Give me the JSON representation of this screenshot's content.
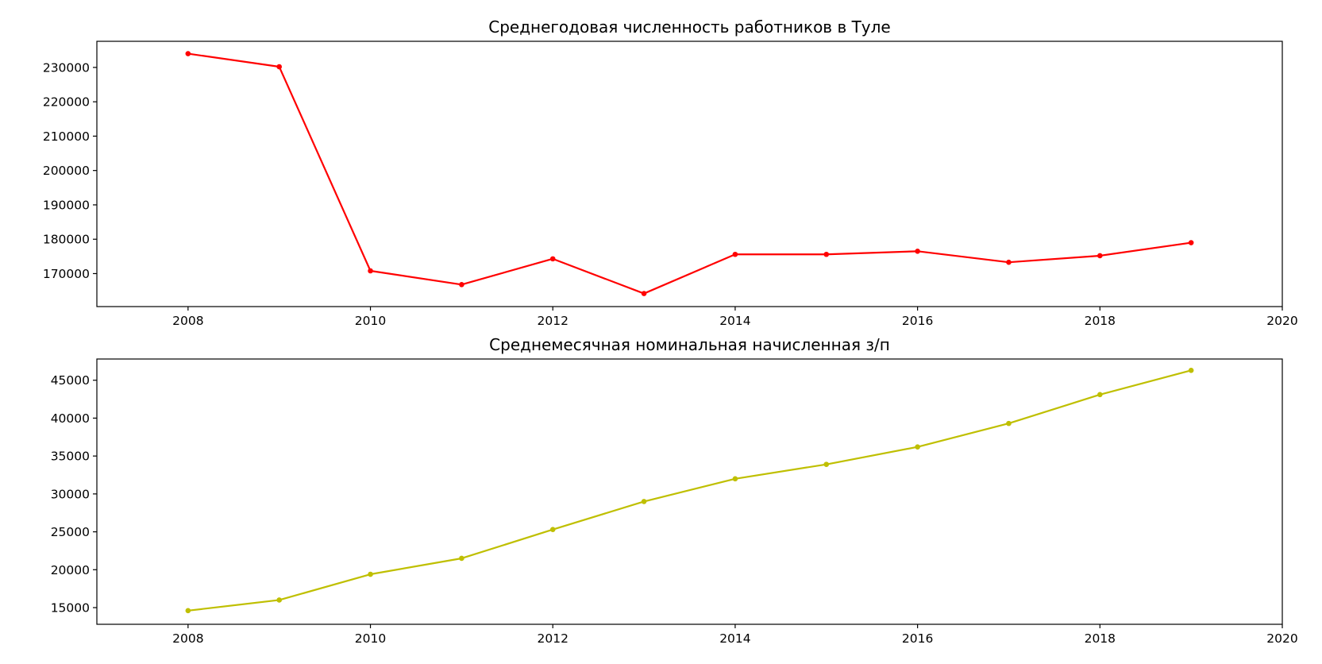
{
  "chart_data": [
    {
      "type": "line",
      "title": "Среднегодовая численность работников в Туле",
      "xlabel": "",
      "ylabel": "",
      "x": [
        2008,
        2009,
        2010,
        2011,
        2012,
        2013,
        2014,
        2015,
        2016,
        2017,
        2018,
        2019
      ],
      "series": [
        {
          "values": [
            234000,
            230200,
            170800,
            166800,
            174300,
            164200,
            175600,
            175600,
            176500,
            173300,
            175200,
            179000
          ],
          "color": "#ff0000",
          "marker": "dot"
        }
      ],
      "xlim": [
        2007,
        2020
      ],
      "ylim": [
        160400,
        237600
      ],
      "xticks": [
        2008,
        2010,
        2012,
        2014,
        2016,
        2018,
        2020
      ],
      "yticks": [
        170000,
        180000,
        190000,
        200000,
        210000,
        220000,
        230000
      ],
      "grid": false,
      "legend": "none"
    },
    {
      "type": "line",
      "title": "Среднемесячная номинальная начисленная з/п",
      "xlabel": "",
      "ylabel": "",
      "x": [
        2008,
        2009,
        2010,
        2011,
        2012,
        2013,
        2014,
        2015,
        2016,
        2017,
        2018,
        2019
      ],
      "series": [
        {
          "values": [
            14600,
            16000,
            19400,
            21500,
            25300,
            29000,
            32000,
            33900,
            36200,
            39300,
            43100,
            46300
          ],
          "color": "#bfbf00",
          "marker": "dot"
        }
      ],
      "xlim": [
        2007,
        2020
      ],
      "ylim": [
        12800,
        47800
      ],
      "xticks": [
        2008,
        2010,
        2012,
        2014,
        2016,
        2018,
        2020
      ],
      "yticks": [
        15000,
        20000,
        25000,
        30000,
        35000,
        40000,
        45000
      ],
      "grid": false,
      "legend": "none"
    }
  ]
}
